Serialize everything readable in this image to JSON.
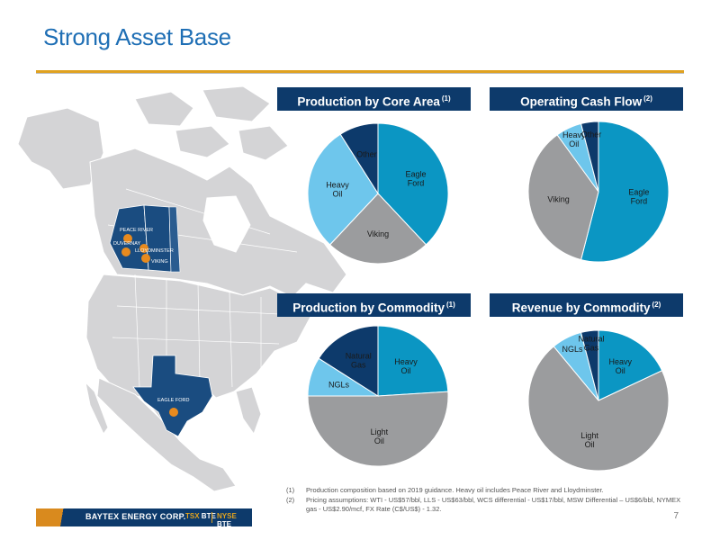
{
  "slide": {
    "title": "Strong Asset Base",
    "page_number": "7"
  },
  "map": {
    "labels": [
      "PEACE RIVER",
      "DUVERNAY",
      "LLOYDMINSTER",
      "VIKING",
      "EAGLE FORD"
    ]
  },
  "panels": [
    {
      "id": "production-core-area",
      "title": "Production by Core Area",
      "footnote_ref": "(1)"
    },
    {
      "id": "operating-cash-flow",
      "title": "Operating Cash Flow",
      "footnote_ref": "(2)"
    },
    {
      "id": "production-commodity",
      "title": "Production by Commodity",
      "footnote_ref": "(1)"
    },
    {
      "id": "revenue-commodity",
      "title": "Revenue by Commodity",
      "footnote_ref": "(2)"
    }
  ],
  "chart_data": [
    {
      "type": "pie",
      "title": "Production by Core Area",
      "slices": [
        {
          "label": "Eagle Ford",
          "value": 38,
          "color": "#0b96c3"
        },
        {
          "label": "Viking",
          "value": 24,
          "color": "#9b9c9e"
        },
        {
          "label": "Heavy Oil",
          "value": 29,
          "color": "#6ec6ec"
        },
        {
          "label": "Other",
          "value": 9,
          "color": "#0d3a6b"
        }
      ]
    },
    {
      "type": "pie",
      "title": "Operating Cash Flow",
      "slices": [
        {
          "label": "Eagle Ford",
          "value": 54,
          "color": "#0b96c3"
        },
        {
          "label": "Viking",
          "value": 36,
          "color": "#9b9c9e"
        },
        {
          "label": "Heavy Oil",
          "value": 6,
          "color": "#6ec6ec"
        },
        {
          "label": "Other",
          "value": 4,
          "color": "#0d3a6b"
        }
      ]
    },
    {
      "type": "pie",
      "title": "Production by Commodity",
      "slices": [
        {
          "label": "Heavy Oil",
          "value": 24,
          "color": "#0b96c3"
        },
        {
          "label": "Light Oil",
          "value": 51,
          "color": "#9b9c9e"
        },
        {
          "label": "NGLs",
          "value": 9,
          "color": "#6ec6ec"
        },
        {
          "label": "Natural Gas",
          "value": 16,
          "color": "#0d3a6b"
        }
      ]
    },
    {
      "type": "pie",
      "title": "Revenue by Commodity",
      "slices": [
        {
          "label": "Heavy Oil",
          "value": 18,
          "color": "#0b96c3"
        },
        {
          "label": "Light Oil",
          "value": 71,
          "color": "#9b9c9e"
        },
        {
          "label": "NGLs",
          "value": 7,
          "color": "#6ec6ec"
        },
        {
          "label": "Natural Gas",
          "value": 4,
          "color": "#0d3a6b"
        }
      ]
    }
  ],
  "footnotes": [
    {
      "num": "(1)",
      "text": "Production composition based on 2019 guidance. Heavy oil includes Peace River and Lloydminster."
    },
    {
      "num": "(2)",
      "text": "Pricing assumptions: WTI - US$57/bbl, LLS - US$63/bbl, WCS differential - US$17/bbl, MSW Differential – US$6/bbl, NYMEX gas - US$2.90/mcf, FX Rate (C$/US$) - 1.32."
    }
  ],
  "footer": {
    "company": "BAYTEX ENERGY CORP.",
    "tsx_exchange": "TSX",
    "tsx_symbol": "BTE",
    "nyse_exchange": "NYSE",
    "nyse_symbol": "BTE"
  }
}
